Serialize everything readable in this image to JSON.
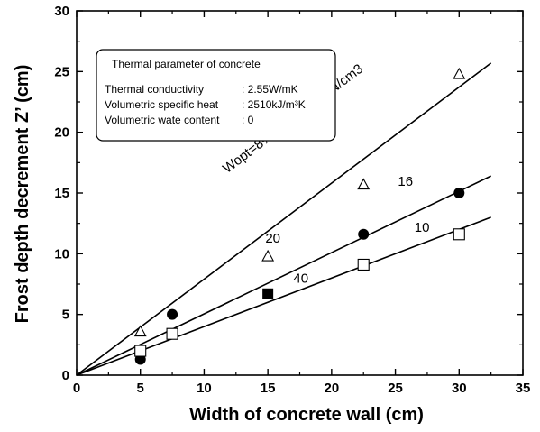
{
  "chart_data": {
    "type": "scatter",
    "xlabel": "Width of  concrete wall (cm)",
    "ylabel": "Frost depth decrement  Z’ (cm)",
    "xlim": [
      0,
      35
    ],
    "ylim": [
      0,
      30
    ],
    "x_ticks": [
      "0",
      "5",
      "10",
      "15",
      "20",
      "25",
      "30",
      "35"
    ],
    "y_ticks": [
      "0",
      "5",
      "10",
      "15",
      "20",
      "25",
      "30"
    ],
    "grid": false,
    "legend_box": {
      "title": "Thermal parameter of concrete",
      "rows": [
        {
          "label": "Thermal conductivity",
          "value": ": 2.55W/mK"
        },
        {
          "label": "Volumetric specific heat",
          "value": ": 2510kJ/m³K"
        },
        {
          "label": "Volumetric  wate content",
          "value": ": 0"
        }
      ]
    },
    "series": [
      {
        "marker": "triangle-open",
        "x": [
          5,
          15,
          22.5,
          30
        ],
        "y": [
          3.6,
          9.8,
          15.7,
          24.8
        ]
      },
      {
        "marker": "circle-filled",
        "x": [
          5,
          7.5,
          22.5,
          30
        ],
        "y": [
          1.3,
          5.0,
          11.6,
          15.0
        ]
      },
      {
        "marker": "square-filled",
        "x": [
          15
        ],
        "y": [
          6.7
        ]
      },
      {
        "marker": "square-open",
        "x": [
          5,
          7.5,
          22.5,
          30
        ],
        "y": [
          2.0,
          3.4,
          9.1,
          11.6
        ]
      }
    ],
    "lines": [
      {
        "x": [
          0,
          32.5
        ],
        "y": [
          0,
          25.7
        ]
      },
      {
        "x": [
          0,
          32.5
        ],
        "y": [
          0,
          16.4
        ]
      },
      {
        "x": [
          0,
          32.5
        ],
        "y": [
          0,
          13.0
        ]
      }
    ],
    "annotations": [
      {
        "text": "Wopt=8% γdmax=21kN/cm3",
        "x": 11.8,
        "y": 16.6
      },
      {
        "text": "20",
        "x": 14.8,
        "y": 10.9
      },
      {
        "text": "16",
        "x": 25.2,
        "y": 15.6
      },
      {
        "text": "40",
        "x": 17.0,
        "y": 7.6
      },
      {
        "text": "10",
        "x": 26.5,
        "y": 11.8
      }
    ]
  }
}
